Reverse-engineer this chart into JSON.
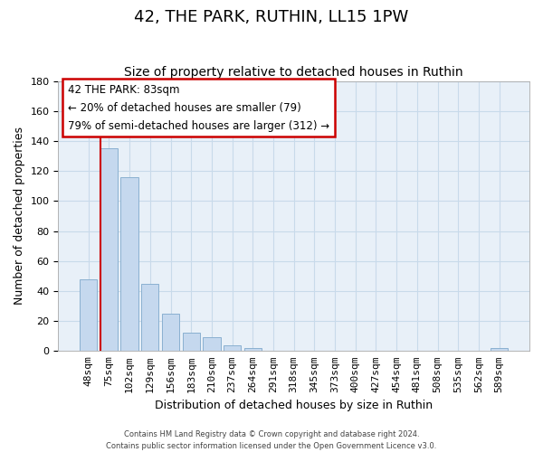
{
  "title": "42, THE PARK, RUTHIN, LL15 1PW",
  "subtitle": "Size of property relative to detached houses in Ruthin",
  "xlabel": "Distribution of detached houses by size in Ruthin",
  "ylabel": "Number of detached properties",
  "bar_values": [
    48,
    135,
    116,
    45,
    25,
    12,
    9,
    4,
    2,
    0,
    0,
    0,
    0,
    0,
    0,
    0,
    0,
    0,
    0,
    0,
    2
  ],
  "bar_labels": [
    "48sqm",
    "75sqm",
    "102sqm",
    "129sqm",
    "156sqm",
    "183sqm",
    "210sqm",
    "237sqm",
    "264sqm",
    "291sqm",
    "318sqm",
    "345sqm",
    "373sqm",
    "400sqm",
    "427sqm",
    "454sqm",
    "481sqm",
    "508sqm",
    "535sqm",
    "562sqm",
    "589sqm"
  ],
  "bar_color": "#c5d8ee",
  "bar_edge_color": "#8ab0d0",
  "ylim": [
    0,
    180
  ],
  "yticks": [
    0,
    20,
    40,
    60,
    80,
    100,
    120,
    140,
    160,
    180
  ],
  "vline_color": "#cc0000",
  "annotation_text_line1": "42 THE PARK: 83sqm",
  "annotation_text_line2": "← 20% of detached houses are smaller (79)",
  "annotation_text_line3": "79% of semi-detached houses are larger (312) →",
  "footer_line1": "Contains HM Land Registry data © Crown copyright and database right 2024.",
  "footer_line2": "Contains public sector information licensed under the Open Government Licence v3.0.",
  "background_color": "#ffffff",
  "grid_color": "#c8daea",
  "title_fontsize": 13,
  "subtitle_fontsize": 10,
  "axis_label_fontsize": 9,
  "tick_fontsize": 8
}
